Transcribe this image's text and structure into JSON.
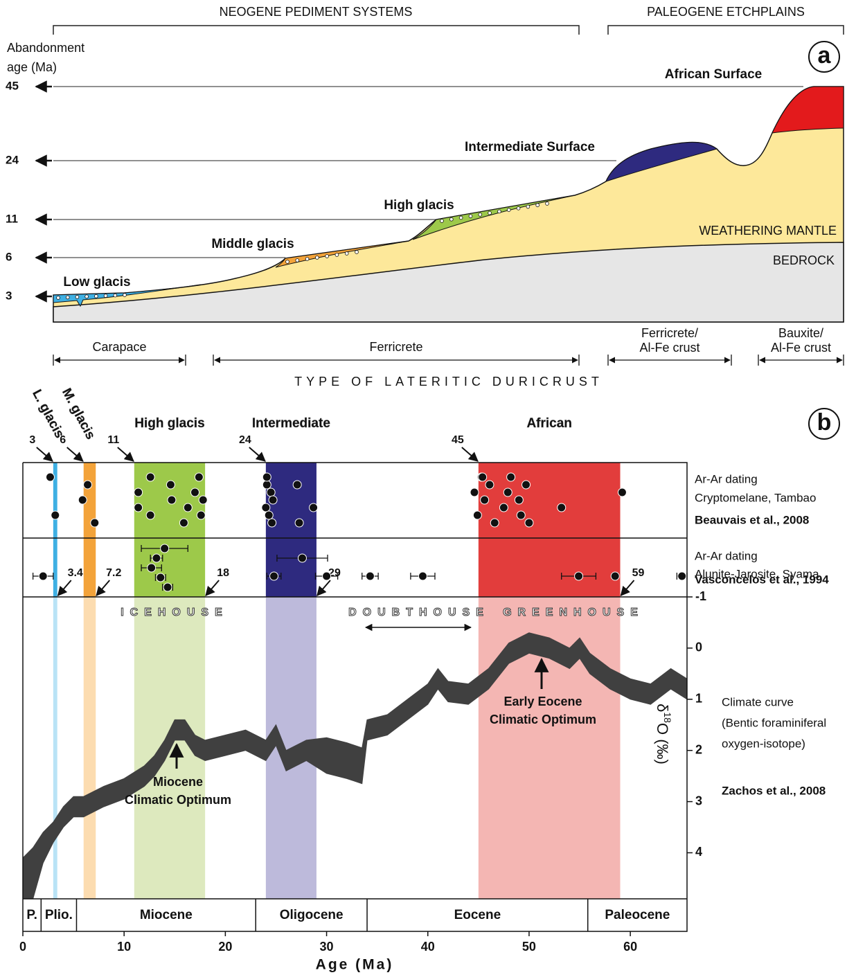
{
  "panel_a": {
    "label": "a",
    "groups": [
      "NEOGENE PEDIMENT SYSTEMS",
      "PALEOGENE ETCHPLAINS"
    ],
    "axis_title": [
      "Abandonment",
      "age (Ma)"
    ],
    "levels": [
      {
        "age": 45,
        "label": "African Surface"
      },
      {
        "age": 24,
        "label": "Intermediate Surface"
      },
      {
        "age": 11,
        "label": "High glacis"
      },
      {
        "age": 6,
        "label": "Middle glacis"
      },
      {
        "age": 3,
        "label": "Low glacis"
      }
    ],
    "layers": [
      "WEATHERING MANTLE",
      "BEDROCK"
    ],
    "duricrusts": [
      [
        "Carapace"
      ],
      [
        "Ferricrete"
      ],
      [
        "Ferricrete/",
        "Al-Fe crust"
      ],
      [
        "Bauxite/",
        "Al-Fe crust"
      ]
    ],
    "duricrust_title": "TYPE OF LATERITIC DURICRUST"
  },
  "chart_data": {
    "type": "area",
    "label": "b",
    "xlabel": "Age (Ma)",
    "xlim": [
      0,
      65.6
    ],
    "xticks": [
      0,
      10,
      20,
      30,
      40,
      50,
      60
    ],
    "ylim": [
      -1,
      4.9
    ],
    "y_inverted": true,
    "yticks": [
      -1,
      0,
      1,
      2,
      3,
      4
    ],
    "ylabel": [
      "δ",
      "18",
      "O (‰)"
    ],
    "bands": [
      {
        "name": "L. glacis",
        "start": 3,
        "end": 3.4,
        "color": "#3fb0e3",
        "light_color": "#b9e3f6"
      },
      {
        "name": "M. glacis",
        "start": 6,
        "end": 7.2,
        "color": "#f3a33a",
        "light_color": "#fcdcb0"
      },
      {
        "name": "High glacis",
        "start": 11,
        "end": 18,
        "color": "#9dc94a",
        "light_color": "#dde9be"
      },
      {
        "name": "Intermediate",
        "start": 24,
        "end": 29,
        "color": "#2e2a7f",
        "light_color": "#bdbadb"
      },
      {
        "name": "African",
        "start": 45,
        "end": 59,
        "color": "#e23d3c",
        "light_color": "#f4b6b3"
      }
    ],
    "dating": [
      {
        "text": [
          "Ar-Ar dating",
          "Cryptomelane, Tambao"
        ],
        "source": "Beauvais et al., 2008",
        "ages": [
          2.7,
          3.2,
          5.9,
          6.4,
          7.1,
          11.4,
          11.4,
          12.6,
          12.6,
          14.7,
          14.6,
          15.9,
          16.3,
          17.0,
          17.4,
          17.6,
          17.8,
          24.1,
          24.6,
          24.0,
          24.5,
          24.1,
          24.3,
          24.7,
          27.1,
          27.3,
          28.7,
          44.6,
          45.3,
          44.9,
          45.6,
          46.1,
          46.6,
          47.5,
          47.9,
          48.2,
          49.2,
          49.0,
          49.7,
          50.0,
          53.2,
          59.2,
          45.4
        ]
      },
      {
        "text": [
          "Ar-Ar dating",
          "Alunite-Jarosite, Syama"
        ],
        "source": "Vasconcelos et al., 1994",
        "ages": [
          2.0,
          14.0,
          13.2,
          12.7,
          13.6,
          14.3,
          27.6,
          24.8,
          30.0,
          34.3,
          39.5,
          54.9,
          58.5,
          65.1
        ],
        "errors": [
          1.0,
          2.3,
          0.6,
          1.0,
          0.5,
          0.5,
          2.5,
          0.7,
          1.1,
          0.8,
          1.2,
          1.7,
          0.3,
          0.5
        ]
      }
    ],
    "curve": {
      "text": [
        "Climate curve",
        "(Bentic foraminiferal",
        "oxygen-isotope)"
      ],
      "source": "Zachos et al., 2008",
      "color": "#404040",
      "x": [
        0,
        1,
        2,
        3,
        4,
        5,
        6,
        8,
        10,
        12,
        13,
        14,
        15,
        16,
        17,
        18,
        20,
        22,
        24,
        25,
        26,
        28,
        30,
        32,
        33.5,
        34,
        36,
        38,
        40,
        41,
        42,
        44,
        46,
        48,
        50,
        52,
        54,
        55,
        56,
        58,
        60,
        62,
        64,
        65.6
      ],
      "low": [
        4.1,
        3.9,
        3.6,
        3.4,
        3.1,
        2.9,
        2.9,
        2.7,
        2.55,
        2.3,
        2.1,
        1.8,
        1.4,
        1.4,
        1.7,
        1.8,
        1.7,
        1.6,
        1.8,
        1.5,
        2.0,
        1.8,
        1.75,
        1.85,
        1.95,
        1.4,
        1.3,
        1.0,
        0.7,
        0.4,
        0.65,
        0.7,
        0.4,
        -0.1,
        -0.3,
        -0.2,
        0.0,
        -0.2,
        0.1,
        0.4,
        0.6,
        0.7,
        0.4,
        0.6
      ],
      "high": [
        5.5,
        4.9,
        4.2,
        3.8,
        3.5,
        3.3,
        3.3,
        3.1,
        2.95,
        2.7,
        2.5,
        2.2,
        1.8,
        1.8,
        2.1,
        2.2,
        2.1,
        2.0,
        2.2,
        1.9,
        2.4,
        2.2,
        2.45,
        2.55,
        2.65,
        1.8,
        1.7,
        1.4,
        1.1,
        0.8,
        1.05,
        1.1,
        0.8,
        0.3,
        0.1,
        0.2,
        0.4,
        0.2,
        0.5,
        0.8,
        1.0,
        1.1,
        0.8,
        1.0
      ]
    },
    "regimes": [
      "ICEHOUSE",
      "DOUBTHOUSE",
      "GREENHOUSE"
    ],
    "annotations": [
      [
        "Miocene",
        "Climatic Optimum"
      ],
      [
        "Early Eocene",
        "Climatic Optimum"
      ]
    ],
    "epochs": {
      "names": [
        "P.",
        "Plio.",
        "Miocene",
        "Oligocene",
        "Eocene",
        "Paleocene"
      ],
      "bounds": [
        0,
        1.8,
        5.3,
        23,
        34,
        55.8,
        65.6
      ]
    }
  }
}
